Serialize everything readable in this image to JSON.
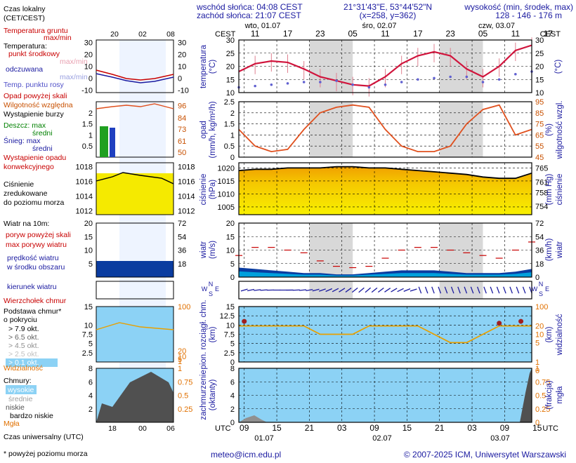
{
  "header": {
    "sunrise": "wschód słońca: 04:08 CEST",
    "sunset": "zachód słońca: 21:07 CEST",
    "coords": "21°31'43\"E, 53°44'52\"N",
    "grid": "(x=258, y=362)",
    "elev_title": "wysokość (min, środek, max)",
    "elev_values": "128 - 146 - 176 m"
  },
  "top_axis": {
    "cest": "CEST",
    "days": [
      "wto, 01.07",
      "śro, 02.07",
      "czw, 03.07"
    ],
    "hours": [
      "11",
      "17",
      "23",
      "05",
      "11",
      "17",
      "23",
      "05",
      "11",
      "17"
    ]
  },
  "bottom_axis": {
    "utc": "UTC",
    "hours": [
      "09",
      "15",
      "21",
      "03",
      "09",
      "15",
      "21",
      "03",
      "09",
      "15"
    ],
    "dates": [
      "01.07",
      "02.07",
      "03.07"
    ]
  },
  "legend": {
    "local_time": "Czas lokalny",
    "local_time2": "(CET/CEST)",
    "legend_hours": [
      "20",
      "02",
      "08"
    ],
    "ground_temp": "Temperatura gruntu",
    "max_min": "max/min",
    "temp": "Temperatura:",
    "mid_point": "punkt środkowy",
    "max_min2": "max/min",
    "felt": "odczuwana",
    "max_min3": "max/min",
    "dew": "Temp. punktu rosy",
    "precip_over": "Opad powyżej skali",
    "humidity": "Wilgotność względna",
    "storm": "Wystąpienie burzy",
    "rain": "Deszcz: max",
    "rain_mid": "średni",
    "snow": "Śnieg: max",
    "snow_mid": "średni",
    "conv1": "Wystąpienie opadu",
    "conv2": "konwekcyjnego",
    "pressure1": "Ciśnienie",
    "pressure2": "zredukowane",
    "pressure3": "do poziomu morza",
    "wind10": "Wiatr na 10m:",
    "gust_over": "poryw powyżej skali",
    "gust_max": "max porywy wiatru",
    "wind_speed1": "prędkość wiatru",
    "wind_speed2": "w środku obszaru",
    "wind_dir": "kierunek wiatru",
    "cloud_top": "Wierzchołek chmur",
    "cloud_base1": "Podstawa chmur*",
    "cloud_base2": "o pokryciu",
    "okt": [
      "> 7.9 okt.",
      "> 6.5 okt.",
      "> 4.5 okt.",
      "> 2.5 okt.",
      "> 0.1 okt."
    ],
    "visibility": "Widzialność",
    "clouds": "Chmury:",
    "high": "wysokie",
    "medium": "średnie",
    "low": "niskie",
    "very_low": "bardzo niskie",
    "fog": "Mgła",
    "utc_time": "Czas uniwersalny (UTC)",
    "footnote": "* powyżej poziomu morza",
    "legend_utc": [
      "18",
      "00",
      "06"
    ]
  },
  "panels": {
    "temperature": {
      "ylabel": "temperatura",
      "unit": "(°C)",
      "ticks": [
        10,
        15,
        20,
        25,
        30
      ],
      "legend_ticks": [
        -10,
        -5,
        0,
        5,
        10,
        15,
        20,
        25,
        30
      ]
    },
    "precip": {
      "ylabel": "opad",
      "unit": "(mm/h, kg/m²/h)",
      "ticks": [
        0,
        0.5,
        1,
        1.5,
        2,
        2.5
      ],
      "rlabel": "wilgotność wzgl.",
      "runit": "(%)",
      "rticks": [
        45,
        55,
        65,
        75,
        85,
        95
      ],
      "legend_rticks": [
        50,
        61,
        73,
        84,
        96
      ]
    },
    "pressure": {
      "ylabel": "ciśnienie",
      "unit": "(hPa)",
      "ticks": [
        1005,
        1010,
        1015,
        1020
      ],
      "rlabel": "ciśnienie",
      "runit": "(mm Hg)",
      "rticks": [
        754,
        758,
        761,
        765
      ],
      "legend_ticks": [
        1012,
        1014,
        1016,
        1018
      ]
    },
    "wind": {
      "ylabel": "wiatr",
      "unit": "(m/s)",
      "ticks": [
        0,
        5,
        10,
        15,
        20
      ],
      "rlabel": "wiatr",
      "runit": "(km/h)",
      "rticks": [
        0,
        18,
        36,
        54,
        72
      ]
    },
    "winddir": {
      "compass": [
        "N",
        "W",
        "E",
        "S"
      ]
    },
    "clouds": {
      "ylabel": "pion. rozciągł. chm.",
      "unit": "(km)",
      "ticks": [
        0,
        2.5,
        5,
        7.5,
        10,
        12.5,
        15
      ],
      "rlabel": "widzialność",
      "runit": "(km)",
      "rticks": [
        0,
        1,
        5,
        10,
        20,
        100
      ]
    },
    "cover": {
      "ylabel": "zachmurzenie",
      "unit": "(oktanty)",
      "ticks": [
        0,
        2,
        4,
        6,
        8
      ],
      "rlabel": "mgła",
      "runit": "(frakcja)",
      "rticks": [
        0,
        0.25,
        0.5,
        0.75,
        1
      ]
    }
  },
  "colors": {
    "temp": "#d0143c",
    "humidity": "#e0501e",
    "pressure_fill": "#f0a000",
    "wind_fill": "#0a3ca0",
    "sky": "#8cd2f5",
    "cloud": "#505050",
    "night": "#d8d8d8"
  },
  "chart_data": {
    "type": "line",
    "hours": [
      0,
      3,
      6,
      9,
      12,
      15,
      18,
      21,
      24,
      27,
      30,
      33,
      36,
      39,
      42,
      45,
      48,
      51,
      54
    ],
    "x_note_times": "hours from 08 UTC 01.07",
    "temperature_c": [
      18,
      21,
      22,
      21.5,
      19,
      16,
      14.5,
      13,
      12.5,
      16,
      21,
      24,
      25.5,
      24,
      19,
      16,
      20,
      26,
      28
    ],
    "dew_point_c": [
      12,
      12.5,
      13,
      13.5,
      14,
      14,
      14.5,
      13,
      12,
      13,
      14,
      15,
      15.5,
      16,
      16,
      14,
      15,
      17,
      18
    ],
    "humidity_pct": [
      70,
      55,
      50,
      52,
      70,
      85,
      90,
      92,
      90,
      70,
      55,
      50,
      50,
      55,
      75,
      88,
      92,
      65,
      70
    ],
    "pressure_hpa": [
      1019,
      1019.5,
      1019.5,
      1020,
      1020,
      1020,
      1020.5,
      1020.5,
      1020,
      1020,
      1019.5,
      1019,
      1018.5,
      1018,
      1017.5,
      1016.5,
      1016,
      1016,
      1018
    ],
    "wind_ms": [
      3.5,
      3,
      2.5,
      2,
      1.5,
      1.5,
      1,
      1,
      1.5,
      2,
      2.5,
      2.5,
      2.5,
      2,
      1.5,
      1.5,
      1.5,
      2,
      3
    ],
    "gust_ms": [
      8,
      11,
      11,
      10,
      9,
      6,
      4,
      3.5,
      4,
      7,
      10,
      11,
      11,
      10,
      9,
      8,
      7,
      10,
      13
    ],
    "visibility_km": [
      20,
      20,
      20,
      20,
      20,
      10,
      10,
      10,
      20,
      20,
      20,
      20,
      10,
      5,
      5,
      10,
      20,
      20,
      20
    ]
  },
  "footer": {
    "email": "meteo@icm.edu.pl",
    "copyright": "© 2007-2025 ICM, Uniwersytet Warszawski"
  }
}
